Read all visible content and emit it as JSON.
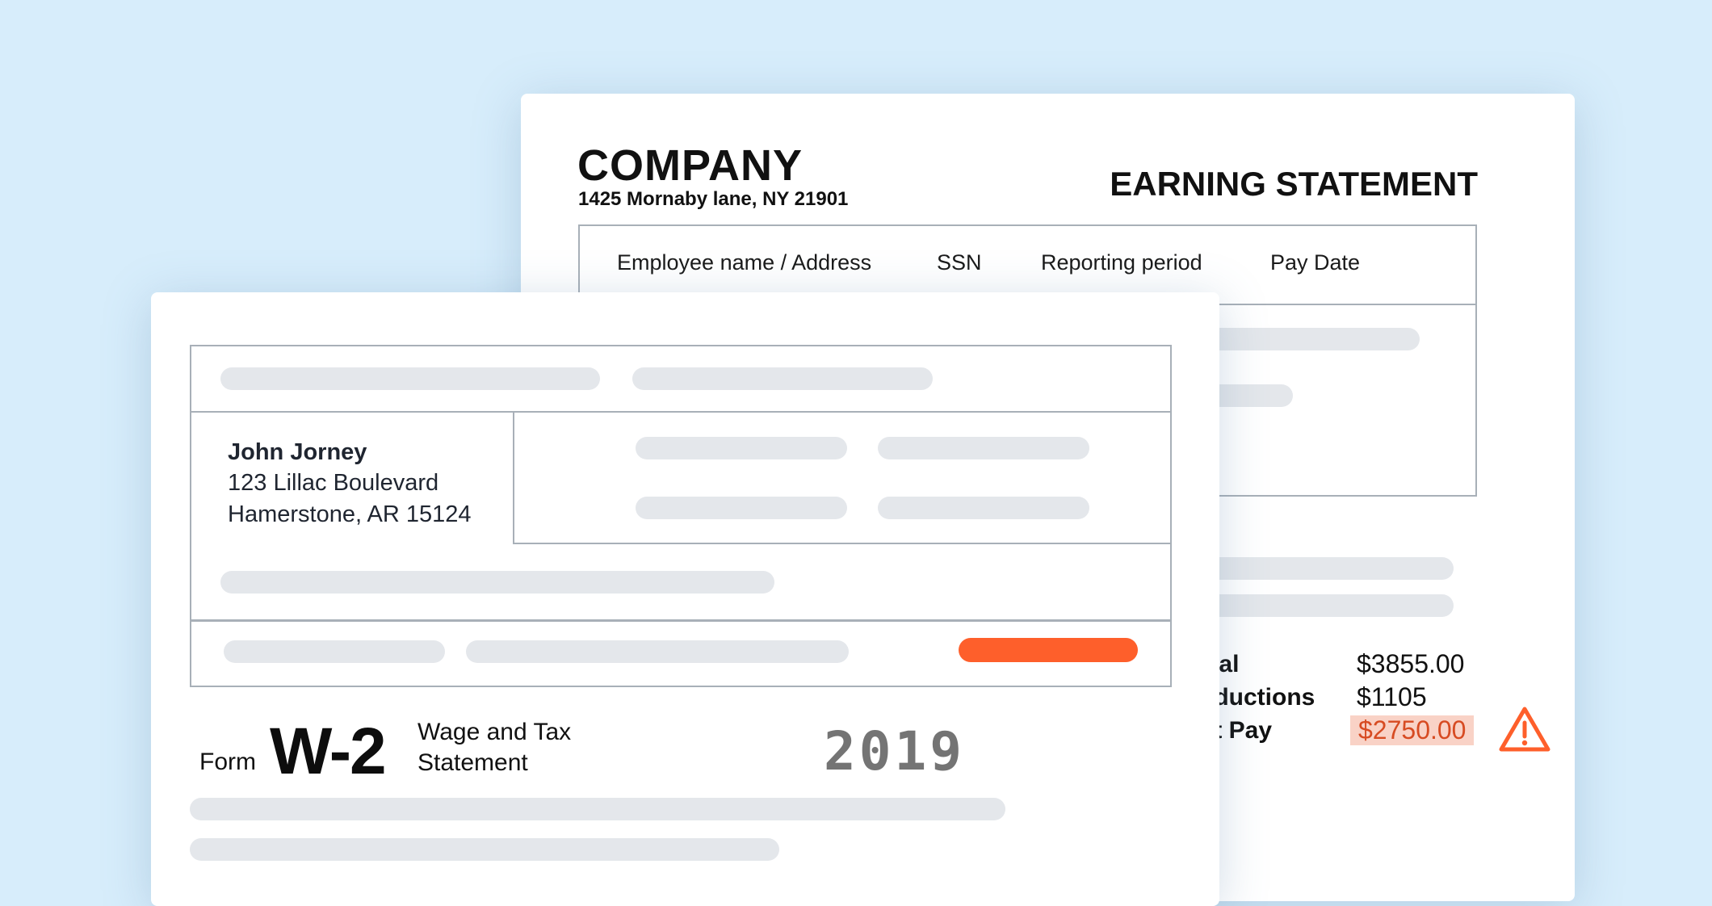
{
  "earning_statement": {
    "company_name": "COMPANY",
    "company_address": "1425 Mornaby lane, NY 21901",
    "title": "EARNING STATEMENT",
    "columns": [
      "Employee name / Address",
      "SSN",
      "Reporting period",
      "Pay Date"
    ],
    "summary": [
      {
        "label": "Total",
        "value": "$3855.00"
      },
      {
        "label": "Deductions",
        "value": "$1105"
      },
      {
        "label": "Net Pay",
        "value": "$2750.00"
      }
    ],
    "warning_icon": "warning-triangle-icon",
    "alert_color": "#fe5f2b"
  },
  "w2": {
    "employee": {
      "name": "John Jorney",
      "address_line1": "123 Lillac Boulevard",
      "address_line2": "Hamerstone, AR 15124"
    },
    "form_word": "Form",
    "form_code": "W-2",
    "form_title": "Wage and Tax Statement",
    "year": "2019"
  }
}
